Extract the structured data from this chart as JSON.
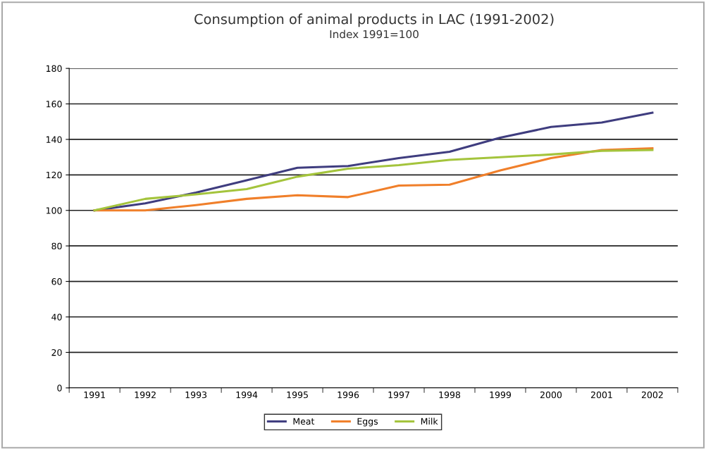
{
  "chart_data": {
    "type": "line",
    "title": "Consumption of animal products in LAC (1991-2002)",
    "subtitle": "Index 1991=100",
    "categories": [
      "1991",
      "1992",
      "1993",
      "1994",
      "1995",
      "1996",
      "1997",
      "1998",
      "1999",
      "2000",
      "2001",
      "2002"
    ],
    "series": [
      {
        "name": "Meat",
        "color": "#3f3d7f",
        "values": [
          100,
          104,
          110,
          117,
          124,
          125,
          129.5,
          133,
          141,
          147,
          149.5,
          155
        ]
      },
      {
        "name": "Eggs",
        "color": "#f07f2a",
        "values": [
          100,
          100,
          103,
          106.5,
          108.5,
          107.5,
          114,
          114.5,
          122.5,
          129.5,
          134,
          135
        ]
      },
      {
        "name": "Milk",
        "color": "#a4c43c",
        "values": [
          100,
          106.5,
          109,
          112,
          119,
          123.5,
          125.5,
          128.5,
          130,
          131.5,
          133.5,
          134
        ]
      }
    ],
    "ylim": [
      0,
      180
    ],
    "yticks": [
      0,
      20,
      40,
      60,
      80,
      100,
      120,
      140,
      160,
      180
    ],
    "grid": "y",
    "legend": "bottom",
    "marker": "none",
    "line_style": "solid"
  }
}
